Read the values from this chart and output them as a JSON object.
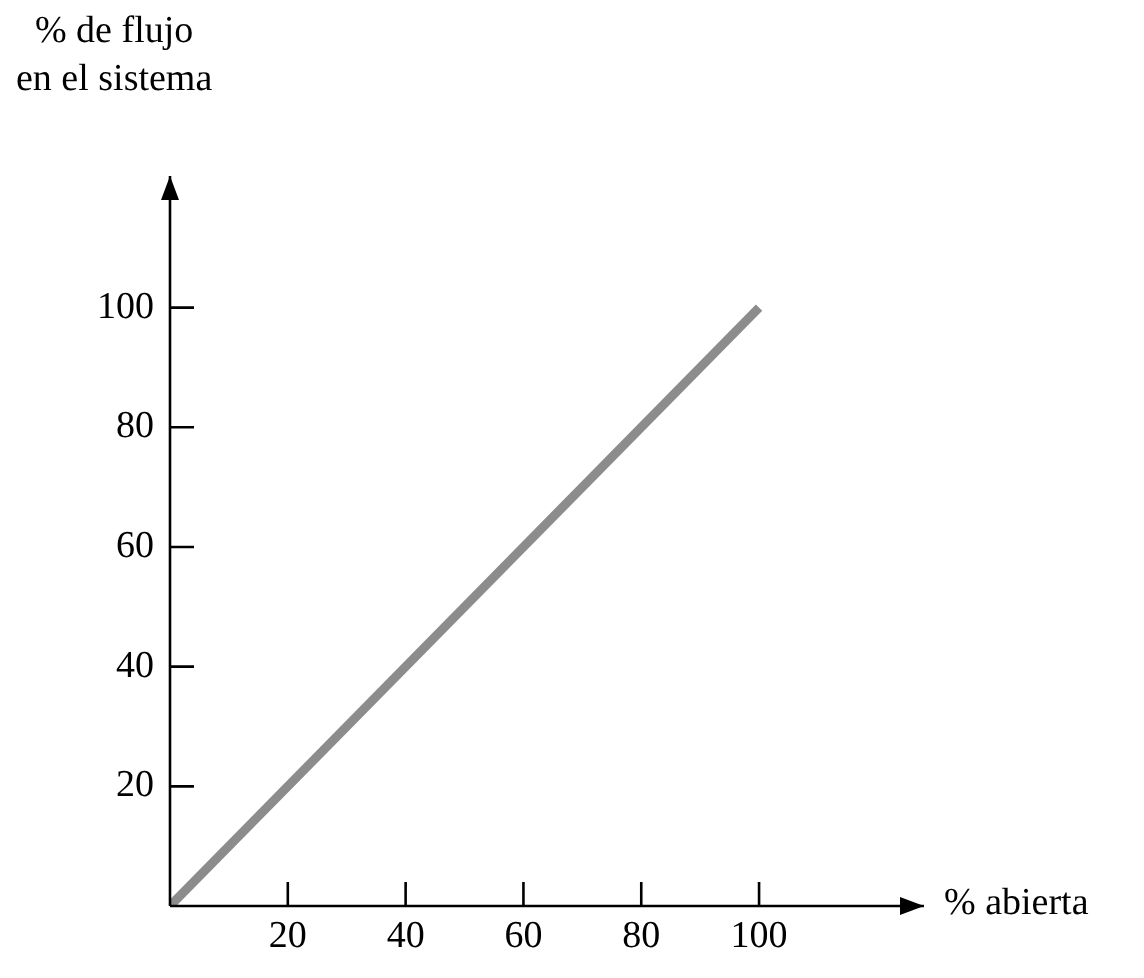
{
  "chart_data": {
    "type": "line",
    "xlabel": "% abierta",
    "ylabel": "% de flujo\nen el sistema",
    "x": [
      0,
      100
    ],
    "series": [
      {
        "color": "#8c8c8c",
        "values": [
          0,
          100
        ]
      }
    ],
    "xlim": [
      0,
      128
    ],
    "ylim": [
      0,
      122
    ],
    "xticks": [
      20,
      40,
      60,
      80,
      100
    ],
    "yticks": [
      20,
      40,
      60,
      80,
      100
    ],
    "grid": false,
    "legend": false,
    "marker": "none",
    "line_style": "solid"
  }
}
